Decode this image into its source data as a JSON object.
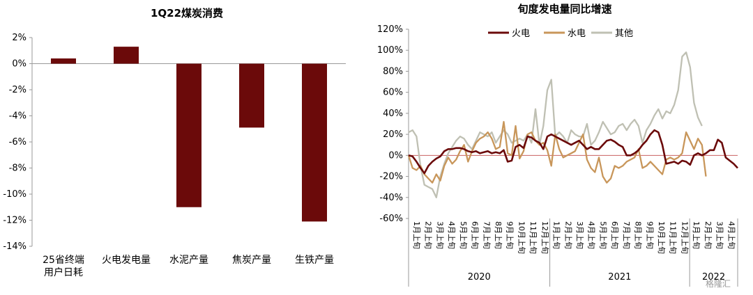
{
  "watermark": "格隆汇",
  "chart_data": [
    {
      "type": "bar",
      "title": "1Q22煤炭消费",
      "categories": [
        "25省终端\n用户日耗",
        "火电发电量",
        "水泥产量",
        "焦炭产量",
        "生铁产量"
      ],
      "values": [
        0.4,
        1.3,
        -11.0,
        -4.9,
        -12.1
      ],
      "ylim": [
        -14,
        2
      ],
      "yticks": [
        "2%",
        "0%",
        "-2%",
        "-4%",
        "-6%",
        "-8%",
        "-10%",
        "-12%",
        "-14%"
      ],
      "ytick_values": [
        2,
        0,
        -2,
        -4,
        -6,
        -8,
        -10,
        -12,
        -14
      ],
      "xlabel": "",
      "ylabel": "",
      "color": "#6B0A0A"
    },
    {
      "type": "line",
      "title": "旬度发电量同比增速",
      "ylim": [
        -60,
        120
      ],
      "yticks": [
        "120%",
        "100%",
        "80%",
        "60%",
        "40%",
        "20%",
        "0%",
        "-20%",
        "-40%",
        "-60%"
      ],
      "ytick_values": [
        120,
        100,
        80,
        60,
        40,
        20,
        0,
        -20,
        -40,
        -60
      ],
      "x_labels": [
        "1月上旬",
        "2月上旬",
        "3月上旬",
        "4月上旬",
        "5月上旬",
        "6月上旬",
        "7月上旬",
        "8月上旬",
        "9月上旬",
        "10月上旬",
        "11月上旬",
        "12月上旬",
        "1月上旬",
        "2月上旬",
        "3月上旬",
        "4月上旬",
        "5月上旬",
        "6月上旬",
        "7月上旬",
        "8月上旬",
        "9月上旬",
        "10月上旬",
        "11月上旬",
        "12月上旬",
        "1月上旬",
        "2月上旬",
        "3月上旬",
        "4月上旬"
      ],
      "years": [
        "2020",
        "2021",
        "2022"
      ],
      "legend_position": "top-center",
      "series": [
        {
          "name": "火电",
          "color": "#6B0A0A",
          "values": [
            0,
            -1,
            -6,
            -12,
            -17,
            -10,
            -6,
            -3,
            -1,
            4,
            6,
            6,
            7,
            7,
            6,
            4,
            3,
            4,
            2,
            3,
            4,
            2,
            3,
            2,
            5,
            -6,
            -5,
            8,
            10,
            7,
            18,
            17,
            14,
            12,
            6,
            18,
            20,
            18,
            16,
            14,
            12,
            10,
            12,
            14,
            10,
            6,
            8,
            6,
            6,
            10,
            14,
            15,
            13,
            10,
            8,
            0,
            0,
            2,
            5,
            10,
            14,
            20,
            24,
            22,
            10,
            -8,
            -7,
            -6,
            -8,
            -5,
            -6,
            -9,
            0,
            2,
            0,
            2,
            5,
            5,
            15,
            12,
            -2,
            -5,
            -8,
            -12
          ],
          "x_start": 0
        },
        {
          "name": "水电",
          "color": "#C8965A",
          "values": [
            0,
            -12,
            -14,
            -10,
            -18,
            -22,
            -26,
            -18,
            -24,
            -10,
            -2,
            -8,
            -4,
            4,
            10,
            -6,
            4,
            12,
            16,
            18,
            22,
            16,
            6,
            8,
            32,
            2,
            0,
            28,
            -3,
            4,
            20,
            22,
            14,
            10,
            12,
            5,
            -10,
            20,
            6,
            -2,
            0,
            2,
            4,
            12,
            20,
            -4,
            -12,
            -16,
            -2,
            -20,
            -26,
            -22,
            -10,
            -12,
            -10,
            -6,
            -4,
            -2,
            6,
            -12,
            -10,
            -6,
            -10,
            -14,
            -18,
            -4,
            -2,
            -4,
            -2,
            2,
            22,
            14,
            6,
            16,
            10,
            -20
          ],
          "x_start": 0
        },
        {
          "name": "其他",
          "color": "#BFC0B3",
          "values": [
            22,
            24,
            18,
            -10,
            -28,
            -30,
            -32,
            -40,
            -20,
            -8,
            2,
            8,
            14,
            18,
            16,
            10,
            6,
            14,
            22,
            20,
            18,
            22,
            12,
            18,
            24,
            20,
            12,
            14,
            16,
            14,
            20,
            12,
            44,
            10,
            28,
            62,
            72,
            18,
            22,
            18,
            12,
            24,
            20,
            18,
            18,
            30,
            10,
            14,
            22,
            32,
            26,
            20,
            22,
            28,
            30,
            24,
            30,
            34,
            28,
            12,
            24,
            30,
            38,
            44,
            35,
            42,
            40,
            48,
            62,
            94,
            98,
            84,
            50,
            36,
            28
          ],
          "x_start": 0
        }
      ]
    }
  ]
}
